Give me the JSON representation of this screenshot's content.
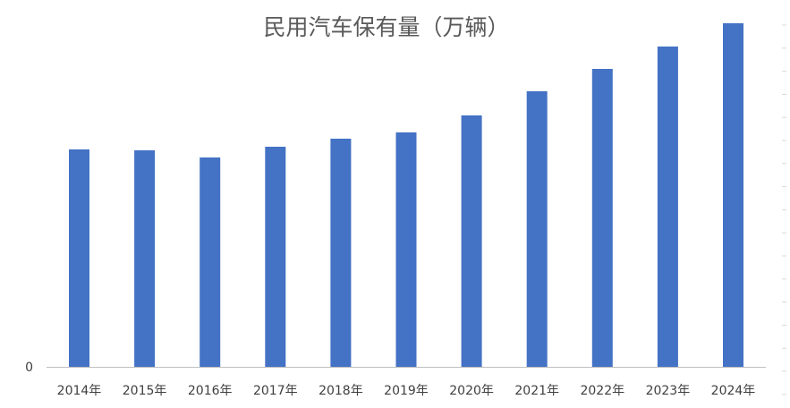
{
  "chart_data": {
    "type": "bar",
    "title": "民用汽车保有量（万辆）",
    "categories": [
      "2014年",
      "2015年",
      "2016年",
      "2017年",
      "2018年",
      "2019年",
      "2020年",
      "2021年",
      "2022年",
      "2023年",
      "2024年"
    ],
    "series": [
      {
        "values": [
          243,
          242,
          234,
          246,
          255,
          262,
          281,
          308,
          333,
          358,
          384
        ],
        "color": "#4472c4"
      }
    ],
    "y_tick_labels": [
      "0"
    ],
    "ylim": [
      0,
      400
    ],
    "grid": false,
    "legend": "none",
    "colors": {
      "bar": "#4472c4",
      "axis": "#bfbfbf",
      "title": "#595959",
      "tick_text": "#404040"
    }
  }
}
